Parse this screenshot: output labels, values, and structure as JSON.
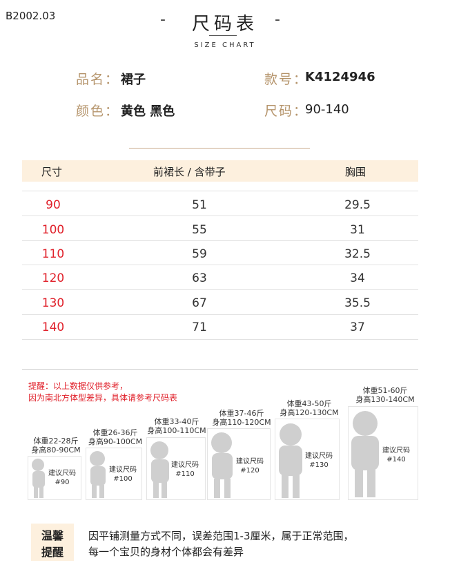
{
  "code": "B2002.03",
  "title": "尺码表",
  "subtitle": "SIZE CHART",
  "info": {
    "name_label": "品名",
    "name_value": "裙子",
    "style_label": "款号",
    "style_value": "K4124946",
    "color_label": "颜色",
    "color_value": "黄色 黑色",
    "size_label": "尺码",
    "size_value": "90-140"
  },
  "table": {
    "headers": [
      "尺寸",
      "前裙长 / 含带子",
      "胸围"
    ],
    "rows": [
      [
        "90",
        "51",
        "29.5"
      ],
      [
        "100",
        "55",
        "31"
      ],
      [
        "110",
        "59",
        "32.5"
      ],
      [
        "120",
        "63",
        "34"
      ],
      [
        "130",
        "67",
        "35.5"
      ],
      [
        "140",
        "71",
        "37"
      ]
    ]
  },
  "notice": {
    "line1": "提醒：以上数据仅供参考，",
    "line2": "因为南北方体型差异，具体请参考尺码表"
  },
  "figures": [
    {
      "weight": "体重22-28斤",
      "height": "身高80-90CM",
      "suggest": "建议尺码",
      "size": "#90"
    },
    {
      "weight": "体重26-36斤",
      "height": "身高90-100CM",
      "suggest": "建议尺码",
      "size": "#100"
    },
    {
      "weight": "体重33-40斤",
      "height": "身高100-110CM",
      "suggest": "建议尺码",
      "size": "#110"
    },
    {
      "weight": "体重37-46斤",
      "height": "身高110-120CM",
      "suggest": "建议尺码",
      "size": "#120"
    },
    {
      "weight": "体重43-50斤",
      "height": "身高120-130CM",
      "suggest": "建议尺码",
      "size": "#130"
    },
    {
      "weight": "体重51-60斤",
      "height": "身高130-140CM",
      "suggest": "建议尺码",
      "size": "#140"
    }
  ],
  "tip": {
    "badge_line1": "温馨",
    "badge_line2": "提醒",
    "line1": "因平铺测量方式不同，误差范围1-3厘米，属于正常范围，",
    "line2": "每一个宝贝的身材个体都会有差异"
  },
  "colors": {
    "accent_red": "#e0202a",
    "label_gold": "#b5946b",
    "header_band": "#fdf0de",
    "silhouette": "#cfcfcf"
  }
}
